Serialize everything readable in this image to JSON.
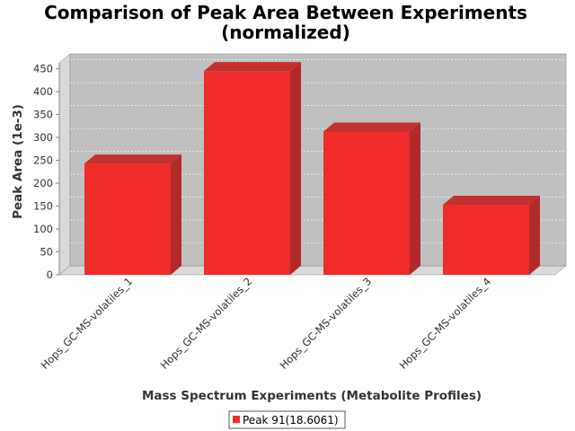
{
  "chart_data": {
    "type": "bar",
    "title": "Comparison of Peak Area Between Experiments",
    "subtitle": "(normalized)",
    "xlabel": "Mass Spectrum Experiments (Metabolite Profiles)",
    "ylabel": "Peak Area (1e-3)",
    "categories": [
      "Hops_GC-MS-volatiles_1",
      "Hops_GC-MS-volatiles_2",
      "Hops_GC-MS-volatiles_3",
      "Hops_GC-MS-volatiles_4"
    ],
    "series": [
      {
        "name": "Peak 91(18.6061)",
        "values": [
          243,
          445,
          313,
          153
        ],
        "color": "#ef2b2b"
      }
    ],
    "ylim": [
      0,
      460
    ],
    "yticks": [
      "0",
      "50",
      "100",
      "150",
      "200",
      "250",
      "300",
      "350",
      "400",
      "450"
    ],
    "grid": true,
    "legend_position": "bottom"
  }
}
